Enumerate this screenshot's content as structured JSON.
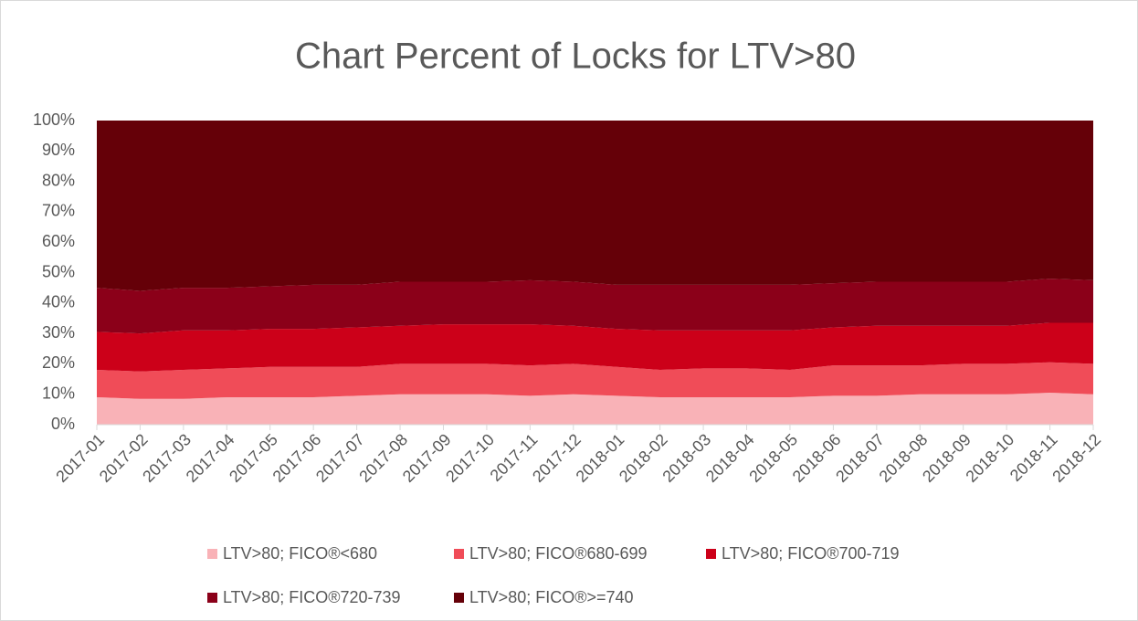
{
  "chart_data": {
    "type": "stacked_area_percent",
    "title": "Chart Percent of Locks for LTV>80",
    "categories": [
      "2017-01",
      "2017-02",
      "2017-03",
      "2017-04",
      "2017-05",
      "2017-06",
      "2017-07",
      "2017-08",
      "2017-09",
      "2017-10",
      "2017-11",
      "2017-12",
      "2018-01",
      "2018-02",
      "2018-03",
      "2018-04",
      "2018-05",
      "2018-06",
      "2018-07",
      "2018-08",
      "2018-09",
      "2018-10",
      "2018-11",
      "2018-12"
    ],
    "series": [
      {
        "name": "LTV>80; FICO®<680",
        "color": "#f9b2b7",
        "values": [
          9,
          8.5,
          8.5,
          9,
          9,
          9,
          9.5,
          10,
          10,
          10,
          9.5,
          10,
          9.5,
          9,
          9,
          9,
          9,
          9.5,
          9.5,
          10,
          10,
          10,
          10.5,
          10
        ]
      },
      {
        "name": "LTV>80; FICO®680-699",
        "color": "#f04c58",
        "values": [
          9,
          9,
          9.5,
          9.5,
          10,
          10,
          9.5,
          10,
          10,
          10,
          10,
          10,
          9.5,
          9,
          9.5,
          9.5,
          9,
          10,
          10,
          9.5,
          10,
          10,
          10,
          10
        ]
      },
      {
        "name": "LTV>80; FICO®700-719",
        "color": "#cc0019",
        "values": [
          12.5,
          12.5,
          13,
          12.5,
          12.5,
          12.5,
          13,
          12.5,
          13,
          13,
          13.5,
          12.5,
          12.5,
          13,
          12.5,
          12.5,
          13,
          12.5,
          13,
          13,
          12.5,
          12.5,
          13,
          13.5
        ]
      },
      {
        "name": "LTV>80; FICO®720-739",
        "color": "#8b0019",
        "values": [
          14.5,
          14,
          14,
          14,
          14,
          14.5,
          14,
          14.5,
          14,
          14,
          14.5,
          14.5,
          14.5,
          15,
          15,
          15,
          15,
          14.5,
          14.5,
          14.5,
          14.5,
          14.5,
          14.5,
          14
        ]
      },
      {
        "name": "LTV>80; FICO®>=740",
        "color": "#650008",
        "values": [
          55,
          56,
          55,
          55,
          54.5,
          54,
          54,
          53,
          53,
          53,
          52.5,
          53,
          54,
          54,
          54,
          54,
          54,
          53.5,
          53,
          53,
          53,
          53,
          52,
          52.5
        ]
      }
    ],
    "ylim": [
      0,
      100
    ],
    "yticks": [
      {
        "value": 0,
        "label": "0%"
      },
      {
        "value": 10,
        "label": "10%"
      },
      {
        "value": 20,
        "label": "20%"
      },
      {
        "value": 30,
        "label": "30%"
      },
      {
        "value": 40,
        "label": "40%"
      },
      {
        "value": 50,
        "label": "50%"
      },
      {
        "value": 60,
        "label": "60%"
      },
      {
        "value": 70,
        "label": "70%"
      },
      {
        "value": 80,
        "label": "80%"
      },
      {
        "value": 90,
        "label": "90%"
      },
      {
        "value": 100,
        "label": "100%"
      }
    ],
    "legend": "bottom"
  }
}
